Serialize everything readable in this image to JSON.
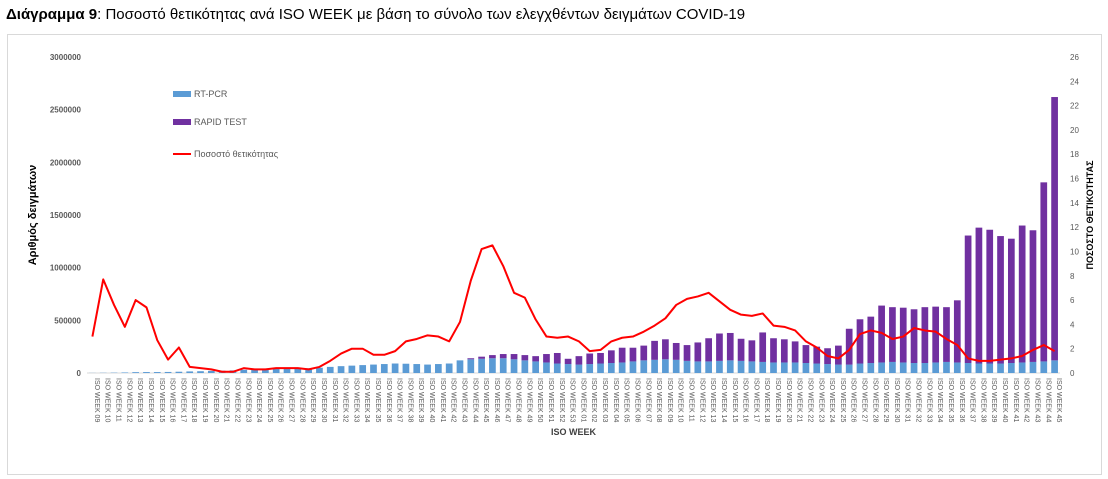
{
  "caption": {
    "prefix": "Διάγραμμα 9",
    "text": ": Ποσοστό θετικότητας ανά ISO WEEK με βάση το σύνολο των ελεγχθέντων δειγμάτων COVID-19"
  },
  "colors": {
    "rtpcr": "#5b9bd5",
    "rapid": "#7030a0",
    "positivity": "#ff0000",
    "grid": "#e6e6e6",
    "axis_text": "#595959"
  },
  "chart_data": {
    "type": "bar",
    "title": "",
    "xlabel": "ISO WEEK",
    "ylabel": "Αριθμός δειγμάτων",
    "y2label": "ΠΟΣΟΣΤΟ ΘΕΤΙΚΟΤΗΤΑΣ",
    "ylim": [
      0,
      3000000
    ],
    "y2lim": [
      0,
      26
    ],
    "yticks": [
      "0",
      "500000",
      "1000000",
      "1500000",
      "2000000",
      "2500000",
      "3000000"
    ],
    "y2ticks": [
      "0",
      "2",
      "4",
      "6",
      "8",
      "10",
      "12",
      "14",
      "16",
      "18",
      "20",
      "22",
      "24",
      "26"
    ],
    "stacked": true,
    "grid": false,
    "legend_position": "top-left",
    "legend": [
      "RT-PCR",
      "RAPID TEST",
      "Ποσοστό θετικότητας"
    ],
    "categories": [
      "ISO WEEK 09",
      "ISO WEEK 10",
      "ISO WEEK 11",
      "ISO WEEK 12",
      "ISO WEEK 13",
      "ISO WEEK 14",
      "ISO WEEK 15",
      "ISO WEEK 16",
      "ISO WEEK 17",
      "ISO WEEK 18",
      "ISO WEEK 19",
      "ISO WEEK 20",
      "ISO WEEK 21",
      "ISO WEEK 22",
      "ISO WEEK 23",
      "ISO WEEK 24",
      "ISO WEEK 25",
      "ISO WEEK 26",
      "ISO WEEK 27",
      "ISO WEEK 28",
      "ISO WEEK 29",
      "ISO WEEK 30",
      "ISO WEEK 31",
      "ISO WEEK 32",
      "ISO WEEK 33",
      "ISO WEEK 34",
      "ISO WEEK 35",
      "ISO WEEK 36",
      "ISO WEEK 37",
      "ISO WEEK 38",
      "ISO WEEK 39",
      "ISO WEEK 40",
      "ISO WEEK 41",
      "ISO WEEK 42",
      "ISO WEEK 43",
      "ISO WEEK 44",
      "ISO WEEK 45",
      "ISO WEEK 46",
      "ISO WEEK 47",
      "ISO WEEK 48",
      "ISO WEEK 49",
      "ISO WEEK 50",
      "ISO WEEK 51",
      "ISO WEEK 52",
      "ISO WEEK 53",
      "ISO WEEK 01",
      "ISO WEEK 02",
      "ISO WEEK 03",
      "ISO WEEK 04",
      "ISO WEEK 05",
      "ISO WEEK 06",
      "ISO WEEK 07",
      "ISO WEEK 08",
      "ISO WEEK 09",
      "ISO WEEK 10",
      "ISO WEEK 11",
      "ISO WEEK 12",
      "ISO WEEK 13",
      "ISO WEEK 14",
      "ISO WEEK 15",
      "ISO WEEK 16",
      "ISO WEEK 17",
      "ISO WEEK 18",
      "ISO WEEK 19",
      "ISO WEEK 20",
      "ISO WEEK 21",
      "ISO WEEK 22",
      "ISO WEEK 23",
      "ISO WEEK 24",
      "ISO WEEK 25",
      "ISO WEEK 26",
      "ISO WEEK 27",
      "ISO WEEK 28",
      "ISO WEEK 29",
      "ISO WEEK 30",
      "ISO WEEK 31",
      "ISO WEEK 32",
      "ISO WEEK 33",
      "ISO WEEK 34",
      "ISO WEEK 35",
      "ISO WEEK 36",
      "ISO WEEK 37",
      "ISO WEEK 38",
      "ISO WEEK 39",
      "ISO WEEK 40",
      "ISO WEEK 41",
      "ISO WEEK 42",
      "ISO WEEK 43",
      "ISO WEEK 44",
      "ISO WEEK 45"
    ],
    "series": [
      {
        "name": "RT-PCR",
        "type": "bar",
        "axis": "left",
        "values": [
          1000,
          2000,
          3000,
          5000,
          8000,
          9000,
          9000,
          10000,
          12000,
          15000,
          17000,
          20000,
          22000,
          25000,
          30000,
          33000,
          35000,
          38000,
          40000,
          42000,
          45000,
          50000,
          58000,
          65000,
          70000,
          75000,
          80000,
          85000,
          90000,
          88000,
          85000,
          80000,
          85000,
          90000,
          120000,
          130000,
          135000,
          140000,
          140000,
          130000,
          120000,
          110000,
          100000,
          90000,
          85000,
          80000,
          85000,
          90000,
          95000,
          100000,
          110000,
          120000,
          125000,
          130000,
          125000,
          115000,
          110000,
          110000,
          115000,
          120000,
          115000,
          110000,
          105000,
          100000,
          100000,
          100000,
          95000,
          90000,
          85000,
          80000,
          80000,
          90000,
          95000,
          100000,
          105000,
          100000,
          95000,
          95000,
          100000,
          105000,
          100000,
          95000,
          90000,
          90000,
          90000,
          95000,
          100000,
          105000,
          110000,
          120000
        ]
      },
      {
        "name": "RAPID TEST",
        "type": "bar",
        "axis": "left",
        "values": [
          0,
          0,
          0,
          0,
          0,
          0,
          0,
          0,
          0,
          0,
          0,
          0,
          0,
          0,
          0,
          0,
          0,
          0,
          0,
          0,
          0,
          0,
          0,
          0,
          0,
          0,
          0,
          0,
          0,
          0,
          0,
          0,
          0,
          0,
          0,
          10000,
          20000,
          30000,
          40000,
          50000,
          50000,
          50000,
          80000,
          100000,
          50000,
          80000,
          100000,
          100000,
          120000,
          140000,
          130000,
          140000,
          180000,
          190000,
          160000,
          150000,
          180000,
          220000,
          260000,
          260000,
          210000,
          200000,
          280000,
          230000,
          220000,
          200000,
          170000,
          160000,
          150000,
          180000,
          340000,
          420000,
          440000,
          540000,
          520000,
          520000,
          510000,
          530000,
          530000,
          520000,
          590000,
          1210000,
          1290000,
          1270000,
          1210000,
          1180000,
          1300000,
          1250000,
          1700000,
          2500000
        ]
      },
      {
        "name": "Ποσοστό θετικότητας",
        "type": "line",
        "axis": "right",
        "values": [
          3.0,
          7.7,
          5.6,
          3.8,
          6.0,
          5.4,
          2.7,
          1.1,
          2.1,
          0.5,
          0.4,
          0.3,
          0.1,
          0.1,
          0.4,
          0.3,
          0.3,
          0.4,
          0.4,
          0.4,
          0.3,
          0.5,
          1.0,
          1.6,
          2.0,
          2.0,
          1.5,
          1.5,
          1.8,
          2.6,
          2.8,
          3.1,
          3.0,
          2.6,
          4.2,
          7.6,
          10.2,
          10.5,
          8.8,
          6.6,
          6.2,
          4.4,
          3.0,
          2.9,
          3.0,
          2.6,
          1.8,
          1.9,
          2.6,
          2.9,
          3.0,
          3.4,
          3.9,
          4.5,
          5.6,
          6.1,
          6.3,
          6.6,
          5.9,
          5.2,
          4.8,
          4.7,
          4.9,
          3.9,
          3.8,
          3.5,
          2.6,
          2.1,
          1.4,
          1.2,
          1.9,
          3.2,
          3.5,
          3.3,
          2.8,
          3.0,
          3.7,
          3.5,
          3.4,
          2.8,
          2.3,
          1.2,
          1.0,
          1.0,
          1.1,
          1.2,
          1.4,
          1.9,
          2.3,
          1.8
        ]
      }
    ]
  }
}
